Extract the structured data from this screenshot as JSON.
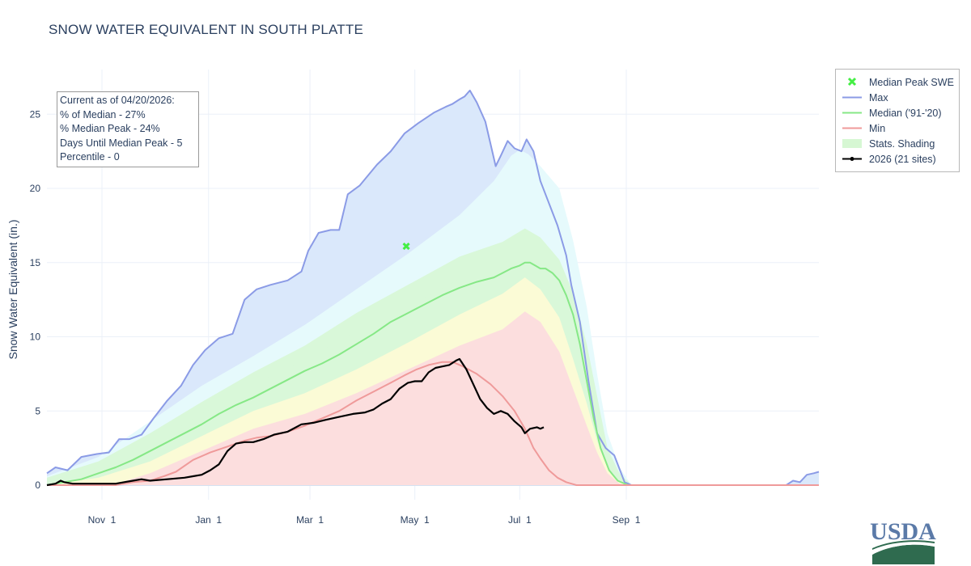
{
  "chart_data": {
    "type": "area",
    "title": "SNOW WATER EQUIVALENT IN SOUTH PLATTE",
    "ylabel": "Snow Water Equivalent (in.)",
    "xlabel": "",
    "x_range": [
      "Oct 1",
      "Sep 30"
    ],
    "x_ticks": [
      "Nov  1",
      "Jan  1",
      "Mar  1",
      "May  1",
      "Jul  1",
      "Sep  1"
    ],
    "y_ticks": [
      "0",
      "5",
      "10",
      "15",
      "20",
      "25"
    ],
    "ylim": [
      -1.5,
      28
    ],
    "grid": true,
    "legend_position": "top-right outside",
    "annotation": {
      "lines": [
        "Current as of 04/20/2026:",
        "% of Median - 27%",
        "% Median Peak - 24%",
        "Days Until Median Peak - 5",
        "Percentile - 0"
      ]
    },
    "median_peak": {
      "name": "Median Peak SWE",
      "day": 209,
      "value": 16.1
    },
    "legend": [
      {
        "label": "Median Peak SWE",
        "symbol": "x",
        "color": "#44ee44"
      },
      {
        "label": "Max",
        "symbol": "line",
        "color": "#8b9be6"
      },
      {
        "label": "Median ('91-'20)",
        "symbol": "line",
        "color": "#86e886"
      },
      {
        "label": "Min",
        "symbol": "line",
        "color": "#ef9a9a"
      },
      {
        "label": "Stats. Shading",
        "symbol": "fill",
        "color": "#d6f7d3"
      },
      {
        "label": "2026 (21 sites)",
        "symbol": "line-marker",
        "color": "#000000"
      }
    ],
    "shading_colors": [
      "#fcdede",
      "#fbfbd6",
      "#d9f8d9",
      "#e6fafc",
      "#dae8fb"
    ],
    "series": [
      {
        "name": "Max",
        "color": "#8b9be6",
        "points": [
          [
            0,
            0.8
          ],
          [
            5,
            1.2
          ],
          [
            12,
            1.0
          ],
          [
            20,
            1.9
          ],
          [
            29,
            2.1
          ],
          [
            36,
            2.2
          ],
          [
            42,
            3.1
          ],
          [
            48,
            3.1
          ],
          [
            55,
            3.4
          ],
          [
            62,
            4.5
          ],
          [
            70,
            5.7
          ],
          [
            78,
            6.7
          ],
          [
            85,
            8.1
          ],
          [
            92,
            9.1
          ],
          [
            100,
            9.9
          ],
          [
            108,
            10.2
          ],
          [
            115,
            12.5
          ],
          [
            122,
            13.2
          ],
          [
            130,
            13.5
          ],
          [
            140,
            13.8
          ],
          [
            148,
            14.4
          ],
          [
            152,
            15.8
          ],
          [
            158,
            17.0
          ],
          [
            165,
            17.2
          ],
          [
            170,
            17.2
          ],
          [
            175,
            19.6
          ],
          [
            182,
            20.2
          ],
          [
            192,
            21.6
          ],
          [
            200,
            22.5
          ],
          [
            208,
            23.7
          ],
          [
            216,
            24.4
          ],
          [
            225,
            25.1
          ],
          [
            232,
            25.5
          ],
          [
            236,
            25.7
          ],
          [
            240,
            26.0
          ],
          [
            243,
            26.2
          ],
          [
            246,
            26.6
          ],
          [
            250,
            25.8
          ],
          [
            255,
            24.5
          ],
          [
            258,
            23.0
          ],
          [
            261,
            21.5
          ],
          [
            264,
            22.2
          ],
          [
            268,
            23.2
          ],
          [
            272,
            22.7
          ],
          [
            276,
            22.5
          ],
          [
            279,
            23.3
          ],
          [
            283,
            22.5
          ],
          [
            287,
            20.5
          ],
          [
            292,
            19.0
          ],
          [
            297,
            17.5
          ],
          [
            302,
            15.5
          ],
          [
            305,
            13.5
          ],
          [
            310,
            11.0
          ],
          [
            315,
            7.0
          ],
          [
            320,
            3.5
          ],
          [
            325,
            2.5
          ],
          [
            330,
            2.0
          ],
          [
            336,
            0.2
          ],
          [
            340,
            0.0
          ],
          [
            430,
            0.0
          ],
          [
            434,
            0.3
          ],
          [
            438,
            0.2
          ],
          [
            442,
            0.7
          ],
          [
            446,
            0.8
          ],
          [
            449,
            0.9
          ]
        ]
      },
      {
        "name": "Median ('91-'20)",
        "color": "#86e886",
        "points": [
          [
            0,
            0.0
          ],
          [
            10,
            0.2
          ],
          [
            20,
            0.4
          ],
          [
            30,
            0.8
          ],
          [
            40,
            1.2
          ],
          [
            50,
            1.7
          ],
          [
            60,
            2.3
          ],
          [
            70,
            2.9
          ],
          [
            80,
            3.5
          ],
          [
            90,
            4.1
          ],
          [
            100,
            4.8
          ],
          [
            110,
            5.4
          ],
          [
            120,
            5.9
          ],
          [
            130,
            6.5
          ],
          [
            140,
            7.1
          ],
          [
            150,
            7.7
          ],
          [
            160,
            8.2
          ],
          [
            170,
            8.8
          ],
          [
            180,
            9.5
          ],
          [
            190,
            10.2
          ],
          [
            200,
            11.0
          ],
          [
            210,
            11.6
          ],
          [
            220,
            12.2
          ],
          [
            230,
            12.8
          ],
          [
            240,
            13.3
          ],
          [
            250,
            13.7
          ],
          [
            260,
            14.0
          ],
          [
            265,
            14.3
          ],
          [
            270,
            14.6
          ],
          [
            275,
            14.8
          ],
          [
            278,
            15.0
          ],
          [
            281,
            15.0
          ],
          [
            284,
            14.8
          ],
          [
            287,
            14.6
          ],
          [
            290,
            14.6
          ],
          [
            294,
            14.3
          ],
          [
            298,
            13.8
          ],
          [
            302,
            12.8
          ],
          [
            306,
            11.5
          ],
          [
            310,
            9.5
          ],
          [
            314,
            7.0
          ],
          [
            318,
            4.5
          ],
          [
            322,
            2.5
          ],
          [
            327,
            1.0
          ],
          [
            332,
            0.3
          ],
          [
            338,
            0.0
          ],
          [
            449,
            0.0
          ]
        ]
      },
      {
        "name": "Min",
        "color": "#ef9a9a",
        "points": [
          [
            0,
            0.0
          ],
          [
            40,
            0.0
          ],
          [
            50,
            0.2
          ],
          [
            60,
            0.3
          ],
          [
            68,
            0.6
          ],
          [
            75,
            0.9
          ],
          [
            85,
            1.7
          ],
          [
            95,
            2.2
          ],
          [
            105,
            2.6
          ],
          [
            115,
            3.0
          ],
          [
            122,
            3.2
          ],
          [
            130,
            3.3
          ],
          [
            140,
            3.6
          ],
          [
            150,
            4.0
          ],
          [
            160,
            4.5
          ],
          [
            170,
            5.0
          ],
          [
            180,
            5.7
          ],
          [
            190,
            6.3
          ],
          [
            200,
            6.9
          ],
          [
            208,
            7.4
          ],
          [
            215,
            7.8
          ],
          [
            222,
            8.1
          ],
          [
            230,
            8.3
          ],
          [
            236,
            8.3
          ],
          [
            242,
            8.0
          ],
          [
            250,
            7.5
          ],
          [
            258,
            6.8
          ],
          [
            265,
            6.0
          ],
          [
            272,
            5.0
          ],
          [
            278,
            3.8
          ],
          [
            283,
            2.5
          ],
          [
            287,
            1.8
          ],
          [
            292,
            1.0
          ],
          [
            297,
            0.5
          ],
          [
            302,
            0.2
          ],
          [
            308,
            0.0
          ],
          [
            449,
            0.0
          ]
        ]
      },
      {
        "name": "2026 (21 sites)",
        "color": "#000000",
        "points": [
          [
            0,
            0.0
          ],
          [
            5,
            0.1
          ],
          [
            8,
            0.3
          ],
          [
            10,
            0.2
          ],
          [
            15,
            0.1
          ],
          [
            30,
            0.1
          ],
          [
            40,
            0.1
          ],
          [
            45,
            0.2
          ],
          [
            50,
            0.3
          ],
          [
            55,
            0.4
          ],
          [
            60,
            0.3
          ],
          [
            70,
            0.4
          ],
          [
            80,
            0.5
          ],
          [
            85,
            0.6
          ],
          [
            90,
            0.7
          ],
          [
            95,
            1.0
          ],
          [
            100,
            1.4
          ],
          [
            105,
            2.3
          ],
          [
            110,
            2.8
          ],
          [
            115,
            2.9
          ],
          [
            120,
            2.9
          ],
          [
            126,
            3.1
          ],
          [
            132,
            3.4
          ],
          [
            140,
            3.6
          ],
          [
            148,
            4.1
          ],
          [
            155,
            4.2
          ],
          [
            162,
            4.4
          ],
          [
            170,
            4.6
          ],
          [
            178,
            4.8
          ],
          [
            185,
            4.9
          ],
          [
            190,
            5.1
          ],
          [
            195,
            5.5
          ],
          [
            200,
            5.8
          ],
          [
            205,
            6.5
          ],
          [
            210,
            6.9
          ],
          [
            214,
            7.0
          ],
          [
            218,
            7.0
          ],
          [
            222,
            7.6
          ],
          [
            226,
            7.9
          ],
          [
            230,
            8.0
          ],
          [
            234,
            8.1
          ],
          [
            238,
            8.4
          ],
          [
            240,
            8.5
          ],
          [
            244,
            7.8
          ],
          [
            248,
            6.8
          ],
          [
            252,
            5.8
          ],
          [
            256,
            5.2
          ],
          [
            260,
            4.8
          ],
          [
            264,
            5.0
          ],
          [
            268,
            4.8
          ],
          [
            272,
            4.3
          ],
          [
            276,
            3.9
          ],
          [
            278,
            3.5
          ],
          [
            281,
            3.8
          ],
          [
            285,
            3.9
          ],
          [
            287,
            3.8
          ],
          [
            289,
            3.9
          ]
        ]
      }
    ],
    "shading_bands": [
      {
        "points": [
          [
            0,
            0.3
          ],
          [
            30,
            1.2
          ],
          [
            60,
            2.8
          ],
          [
            90,
            4.8
          ],
          [
            120,
            6.8
          ],
          [
            150,
            8.4
          ],
          [
            180,
            10.4
          ],
          [
            210,
            12.0
          ],
          [
            240,
            13.9
          ],
          [
            265,
            14.9
          ],
          [
            278,
            15.8
          ],
          [
            287,
            15.4
          ],
          [
            298,
            13.5
          ],
          [
            306,
            11.0
          ],
          [
            314,
            7.0
          ],
          [
            320,
            4.0
          ],
          [
            326,
            1.5
          ],
          [
            333,
            0.3
          ],
          [
            340,
            0.0
          ]
        ]
      },
      {
        "points": [
          [
            0,
            0.5
          ],
          [
            30,
            1.6
          ],
          [
            60,
            3.5
          ],
          [
            90,
            5.6
          ],
          [
            120,
            7.6
          ],
          [
            150,
            9.4
          ],
          [
            180,
            11.6
          ],
          [
            210,
            13.5
          ],
          [
            240,
            15.4
          ],
          [
            265,
            16.4
          ],
          [
            278,
            17.3
          ],
          [
            287,
            16.7
          ],
          [
            298,
            15.2
          ],
          [
            306,
            13.0
          ],
          [
            314,
            9.5
          ],
          [
            320,
            6.0
          ],
          [
            326,
            2.5
          ],
          [
            333,
            0.8
          ],
          [
            340,
            0.0
          ]
        ]
      },
      {
        "points": [
          [
            0,
            0.6
          ],
          [
            30,
            1.9
          ],
          [
            60,
            4.3
          ],
          [
            90,
            6.7
          ],
          [
            120,
            8.7
          ],
          [
            150,
            10.8
          ],
          [
            180,
            13.2
          ],
          [
            210,
            15.6
          ],
          [
            240,
            18.2
          ],
          [
            260,
            20.5
          ],
          [
            270,
            22.2
          ],
          [
            275,
            22.6
          ],
          [
            280,
            22.3
          ],
          [
            287,
            21.5
          ],
          [
            298,
            20.0
          ],
          [
            306,
            16.5
          ],
          [
            314,
            12.0
          ],
          [
            320,
            7.5
          ],
          [
            326,
            3.5
          ],
          [
            333,
            1.2
          ],
          [
            340,
            0.0
          ]
        ]
      }
    ],
    "lower_bands": [
      {
        "points": [
          [
            0,
            0.0
          ],
          [
            40,
            0.1
          ],
          [
            60,
            0.8
          ],
          [
            90,
            2.3
          ],
          [
            120,
            3.8
          ],
          [
            150,
            4.8
          ],
          [
            180,
            6.2
          ],
          [
            210,
            7.8
          ],
          [
            240,
            9.4
          ],
          [
            265,
            10.5
          ],
          [
            278,
            11.7
          ],
          [
            287,
            11.0
          ],
          [
            298,
            9.0
          ],
          [
            306,
            6.5
          ],
          [
            314,
            4.0
          ],
          [
            320,
            2.2
          ],
          [
            326,
            0.8
          ],
          [
            333,
            0.1
          ],
          [
            340,
            0.0
          ]
        ]
      },
      {
        "points": [
          [
            0,
            0.0
          ],
          [
            30,
            0.5
          ],
          [
            60,
            1.6
          ],
          [
            90,
            3.3
          ],
          [
            120,
            5.0
          ],
          [
            150,
            6.2
          ],
          [
            180,
            7.8
          ],
          [
            210,
            9.6
          ],
          [
            240,
            11.5
          ],
          [
            265,
            12.9
          ],
          [
            278,
            14.0
          ],
          [
            287,
            13.2
          ],
          [
            298,
            11.3
          ],
          [
            306,
            8.5
          ],
          [
            314,
            5.5
          ],
          [
            320,
            3.0
          ],
          [
            326,
            1.2
          ],
          [
            333,
            0.2
          ],
          [
            340,
            0.0
          ]
        ]
      }
    ]
  },
  "logo": {
    "text": "USDA"
  }
}
